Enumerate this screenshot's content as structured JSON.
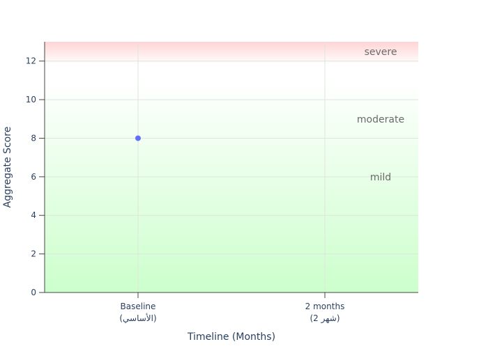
{
  "chart_data": {
    "type": "scatter",
    "xlabel": "Timeline (Months)",
    "ylabel": "Aggregate Score",
    "categories": [
      {
        "line1": "Baseline",
        "line2": "(الأساسي)"
      },
      {
        "line1": "2 months",
        "line2": "(شهر 2)"
      }
    ],
    "ylim": [
      0,
      13
    ],
    "yticks": [
      0,
      2,
      4,
      6,
      8,
      10,
      12
    ],
    "grid": true,
    "series": [
      {
        "points": [
          {
            "category_index": 0,
            "y": 8
          }
        ],
        "color": "#636efa"
      }
    ],
    "bands": [
      {
        "label": "mild",
        "from": 0,
        "to": 12
      },
      {
        "label": "moderate",
        "from": 8,
        "to": 10
      },
      {
        "label": "severe",
        "from": 12,
        "to": 13
      }
    ],
    "colors": {
      "band_green": "#ccffcc",
      "band_white": "#ffffff",
      "band_red": "#ffd4d4",
      "point": "#636efa",
      "axis_text": "#2a3f5f",
      "band_label": "#6b6b6b"
    }
  }
}
